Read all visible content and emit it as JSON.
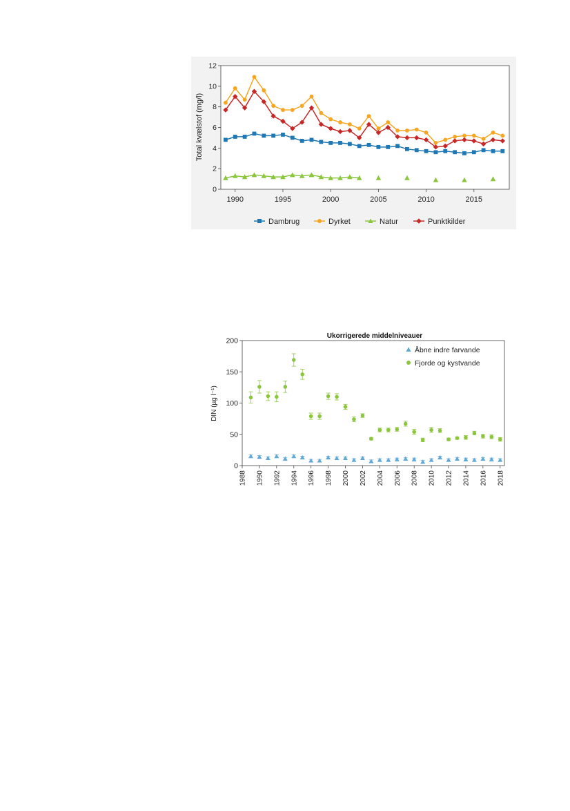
{
  "chart_data": [
    {
      "type": "line",
      "title": "",
      "xlabel": "",
      "ylabel": "Total kvælstof (mg/l)",
      "xlim": [
        1988.5,
        2018.7
      ],
      "ylim": [
        0,
        12
      ],
      "xticks": [
        1990,
        1995,
        2000,
        2005,
        2010,
        2015
      ],
      "yticks": [
        0,
        2,
        4,
        6,
        8,
        10,
        12
      ],
      "grid": false,
      "legend_position": "bottom",
      "series": [
        {
          "name": "Dambrug",
          "color": "#1f78b4",
          "marker": "square",
          "x": [
            1989,
            1990,
            1991,
            1992,
            1993,
            1994,
            1995,
            1996,
            1997,
            1998,
            1999,
            2000,
            2001,
            2002,
            2003,
            2004,
            2005,
            2006,
            2007,
            2008,
            2009,
            2010,
            2011,
            2012,
            2013,
            2014,
            2015,
            2016,
            2017,
            2018
          ],
          "y": [
            4.8,
            5.1,
            5.1,
            5.4,
            5.2,
            5.2,
            5.3,
            5.0,
            4.7,
            4.8,
            4.6,
            4.5,
            4.5,
            4.4,
            4.2,
            4.3,
            4.1,
            4.1,
            4.2,
            3.9,
            3.8,
            3.7,
            3.6,
            3.7,
            3.6,
            3.5,
            3.6,
            3.8,
            3.7,
            3.7
          ]
        },
        {
          "name": "Dyrket",
          "color": "#f5a623",
          "marker": "circle",
          "x": [
            1989,
            1990,
            1991,
            1992,
            1993,
            1994,
            1995,
            1996,
            1997,
            1998,
            1999,
            2000,
            2001,
            2002,
            2003,
            2004,
            2005,
            2006,
            2007,
            2008,
            2009,
            2010,
            2011,
            2012,
            2013,
            2014,
            2015,
            2016,
            2017,
            2018
          ],
          "y": [
            8.4,
            9.8,
            8.7,
            10.9,
            9.6,
            8.1,
            7.7,
            7.7,
            8.1,
            9.0,
            7.4,
            6.8,
            6.5,
            6.3,
            5.9,
            7.1,
            5.9,
            6.5,
            5.7,
            5.7,
            5.8,
            5.5,
            4.5,
            4.8,
            5.1,
            5.2,
            5.2,
            4.9,
            5.5,
            5.2
          ]
        },
        {
          "name": "Natur",
          "color": "#8cc63f",
          "marker": "triangle",
          "x": [
            1989,
            1990,
            1991,
            1992,
            1993,
            1994,
            1995,
            1996,
            1997,
            1998,
            1999,
            2000,
            2001,
            2002,
            2003,
            2005,
            2008,
            2011,
            2014,
            2017
          ],
          "y": [
            1.1,
            1.3,
            1.2,
            1.4,
            1.3,
            1.2,
            1.2,
            1.4,
            1.3,
            1.4,
            1.2,
            1.1,
            1.1,
            1.2,
            1.1,
            1.1,
            1.1,
            0.9,
            0.9,
            1.0
          ],
          "connected_until": 2003
        },
        {
          "name": "Punktkilder",
          "color": "#c62828",
          "marker": "diamond",
          "x": [
            1989,
            1990,
            1991,
            1992,
            1993,
            1994,
            1995,
            1996,
            1997,
            1998,
            1999,
            2000,
            2001,
            2002,
            2003,
            2004,
            2005,
            2006,
            2007,
            2008,
            2009,
            2010,
            2011,
            2012,
            2013,
            2014,
            2015,
            2016,
            2017,
            2018
          ],
          "y": [
            7.7,
            9.0,
            7.9,
            9.5,
            8.5,
            7.1,
            6.6,
            5.9,
            6.5,
            7.9,
            6.3,
            5.9,
            5.6,
            5.7,
            5.0,
            6.3,
            5.5,
            6.0,
            5.1,
            5.0,
            5.0,
            4.8,
            4.1,
            4.2,
            4.7,
            4.8,
            4.7,
            4.4,
            4.8,
            4.7
          ]
        }
      ]
    },
    {
      "type": "scatter",
      "title": "Ukorrigerede middelniveauer",
      "xlabel": "",
      "ylabel": "DIN (µg l⁻¹)",
      "xlim": [
        1988,
        2018.5
      ],
      "ylim": [
        0,
        200
      ],
      "xticks": [
        1988,
        1990,
        1992,
        1994,
        1996,
        1998,
        2000,
        2002,
        2004,
        2006,
        2008,
        2010,
        2012,
        2014,
        2016,
        2018
      ],
      "yticks": [
        0,
        50,
        100,
        150,
        200
      ],
      "grid": false,
      "legend_position": "top-right",
      "series": [
        {
          "name": "Åbne indre farvande",
          "color": "#5fa8d8",
          "marker": "triangle",
          "x": [
            1989,
            1990,
            1991,
            1992,
            1993,
            1994,
            1995,
            1996,
            1997,
            1998,
            1999,
            2000,
            2001,
            2002,
            2003,
            2004,
            2005,
            2006,
            2007,
            2008,
            2009,
            2010,
            2011,
            2012,
            2013,
            2014,
            2015,
            2016,
            2017,
            2018
          ],
          "y": [
            15,
            14,
            12,
            15,
            11,
            15,
            13,
            8,
            8,
            13,
            12,
            12,
            9,
            12,
            7,
            9,
            9,
            10,
            11,
            10,
            6,
            9,
            13,
            9,
            11,
            10,
            9,
            11,
            10,
            9
          ],
          "err": [
            2,
            2,
            2,
            2,
            2,
            2,
            2,
            2,
            2,
            2,
            2,
            2,
            2,
            2,
            2,
            2,
            2,
            2,
            2,
            2,
            2,
            2,
            2,
            2,
            2,
            2,
            2,
            2,
            2,
            2
          ]
        },
        {
          "name": "Fjorde og kystvande",
          "color": "#8cc63f",
          "marker": "circle",
          "x": [
            1989,
            1990,
            1991,
            1992,
            1993,
            1994,
            1995,
            1996,
            1997,
            1998,
            1999,
            2000,
            2001,
            2002,
            2003,
            2004,
            2005,
            2006,
            2007,
            2008,
            2009,
            2010,
            2011,
            2012,
            2013,
            2014,
            2015,
            2016,
            2017,
            2018
          ],
          "y": [
            109,
            126,
            111,
            110,
            126,
            169,
            146,
            79,
            79,
            111,
            110,
            94,
            74,
            80,
            43,
            57,
            57,
            58,
            67,
            54,
            41,
            57,
            56,
            42,
            44,
            45,
            52,
            47,
            46,
            42
          ],
          "err": [
            9,
            10,
            7,
            8,
            9,
            10,
            8,
            5,
            5,
            5,
            5,
            4,
            4,
            3,
            2,
            3,
            3,
            3,
            4,
            4,
            3,
            4,
            3,
            2,
            2,
            3,
            3,
            3,
            3,
            3
          ]
        }
      ]
    }
  ]
}
